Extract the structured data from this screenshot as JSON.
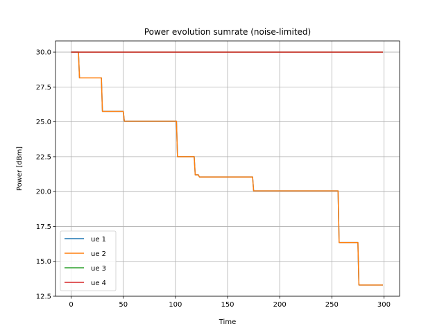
{
  "chart_data": {
    "type": "line",
    "title": "Power evolution sumrate (noise-limited)",
    "xlabel": "Time",
    "ylabel": "Power [dBm]",
    "xlim": [
      -15,
      315
    ],
    "ylim": [
      12.5,
      30.8
    ],
    "xticks": [
      0,
      50,
      100,
      150,
      200,
      250,
      300
    ],
    "xtick_labels": [
      "0",
      "50",
      "100",
      "150",
      "200",
      "250",
      "300"
    ],
    "yticks": [
      12.5,
      15.0,
      17.5,
      20.0,
      22.5,
      25.0,
      27.5,
      30.0
    ],
    "ytick_labels": [
      "12.5",
      "15.0",
      "17.5",
      "20.0",
      "22.5",
      "25.0",
      "27.5",
      "30.0"
    ],
    "grid": true,
    "legend_position": "lower-left",
    "series": [
      {
        "name": "ue 1",
        "color": "#1f77b4",
        "points": [
          [
            0,
            30.0
          ],
          [
            7,
            30.0
          ],
          [
            8,
            28.15
          ],
          [
            29,
            28.15
          ],
          [
            30,
            25.75
          ],
          [
            50,
            25.75
          ],
          [
            51,
            25.05
          ],
          [
            101,
            25.05
          ],
          [
            102,
            22.5
          ],
          [
            118,
            22.5
          ],
          [
            119,
            21.2
          ],
          [
            122,
            21.2
          ],
          [
            123,
            21.05
          ],
          [
            174,
            21.05
          ],
          [
            175,
            20.05
          ],
          [
            256,
            20.05
          ],
          [
            257,
            16.35
          ],
          [
            275,
            16.35
          ],
          [
            276,
            13.3
          ],
          [
            299,
            13.3
          ]
        ]
      },
      {
        "name": "ue 2",
        "color": "#ff7f0e",
        "points": [
          [
            0,
            30.0
          ],
          [
            7,
            30.0
          ],
          [
            8,
            28.15
          ],
          [
            29,
            28.15
          ],
          [
            30,
            25.75
          ],
          [
            50,
            25.75
          ],
          [
            51,
            25.05
          ],
          [
            101,
            25.05
          ],
          [
            102,
            22.5
          ],
          [
            118,
            22.5
          ],
          [
            119,
            21.2
          ],
          [
            122,
            21.2
          ],
          [
            123,
            21.05
          ],
          [
            174,
            21.05
          ],
          [
            175,
            20.05
          ],
          [
            256,
            20.05
          ],
          [
            257,
            16.35
          ],
          [
            275,
            16.35
          ],
          [
            276,
            13.3
          ],
          [
            299,
            13.3
          ]
        ]
      },
      {
        "name": "ue 3",
        "color": "#2ca02c",
        "points": [
          [
            0,
            30.0
          ],
          [
            299,
            30.0
          ]
        ]
      },
      {
        "name": "ue 4",
        "color": "#d62728",
        "points": [
          [
            0,
            30.0
          ],
          [
            299,
            30.0
          ]
        ]
      }
    ]
  }
}
